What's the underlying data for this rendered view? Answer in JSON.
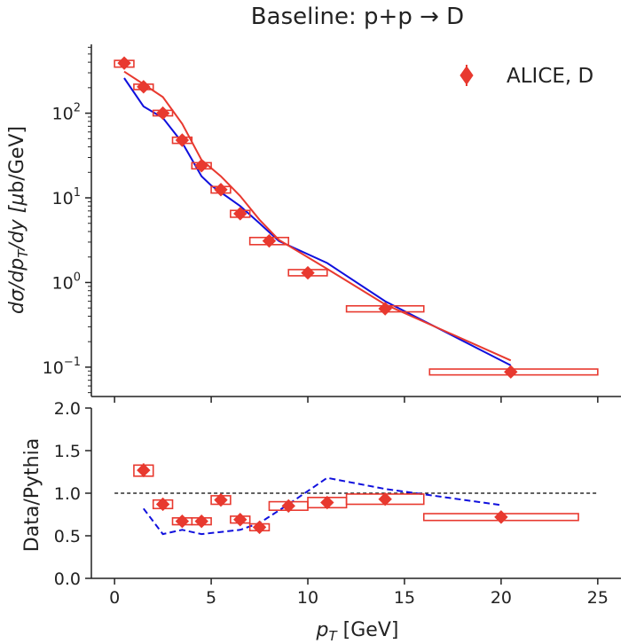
{
  "title": "Baseline: p+p → D",
  "colors": {
    "data": "#e8392f",
    "pythia_alt": "#1010dd",
    "axis": "#222222"
  },
  "top_panel": {
    "ylabel": "dσ/dp",
    "ylabel_sub": "T",
    "ylabel_mid": "/dy [",
    "ylabel_mu": "μ",
    "ylabel_end": "b/GeV]",
    "ytick_exps": [
      "2",
      "1",
      "0",
      "−1"
    ],
    "legend": "ALICE, D"
  },
  "bottom_panel": {
    "ylabel": "Data/Pythia",
    "yticks": [
      "0.0",
      "0.5",
      "1.0",
      "1.5",
      "2.0"
    ]
  },
  "xlabel_main": "p",
  "xlabel_sub": "T",
  "xlabel_unit": " [GeV]",
  "xticks": [
    "0",
    "5",
    "10",
    "15",
    "20",
    "25"
  ],
  "chart_data": [
    {
      "type": "scatter",
      "panel": "top",
      "y_scale": "log",
      "xlim": [
        -1.2,
        26.2
      ],
      "ylim": [
        0.045,
        650
      ],
      "series": [
        {
          "name": "ALICE, D",
          "marker": "diamond",
          "x": [
            0.5,
            1.5,
            2.5,
            3.5,
            4.5,
            5.5,
            6.5,
            8.0,
            10.0,
            14.0,
            20.5
          ],
          "y": [
            390,
            205,
            100,
            48,
            24,
            12.5,
            6.5,
            3.1,
            1.3,
            0.49,
            0.088
          ],
          "x_low": [
            0.0,
            1.0,
            2.0,
            3.0,
            4.0,
            5.0,
            6.0,
            7.0,
            9.0,
            12.0,
            16.3
          ],
          "x_high": [
            1.0,
            2.0,
            3.0,
            4.0,
            5.0,
            6.0,
            7.0,
            9.0,
            11.0,
            16.0,
            25.0
          ],
          "sys_low": [
            350,
            190,
            93,
            44,
            22,
            11.4,
            5.9,
            2.8,
            1.2,
            0.45,
            0.081
          ],
          "sys_high": [
            420,
            220,
            108,
            52,
            26,
            13.6,
            7.1,
            3.4,
            1.42,
            0.53,
            0.095
          ]
        },
        {
          "line": "red",
          "x": [
            0.5,
            1.5,
            2.5,
            3.5,
            4.5,
            5.5,
            6.5,
            7.5,
            8.5,
            11.0,
            14.0,
            20.5
          ],
          "y": [
            310,
            220,
            155,
            75,
            28,
            18,
            10.5,
            5.5,
            3.2,
            1.45,
            0.55,
            0.12
          ]
        },
        {
          "line": "blue",
          "x": [
            0.5,
            1.5,
            2.5,
            3.5,
            4.5,
            5.0,
            6.5,
            7.5,
            8.5,
            11.0,
            14.0,
            20.5
          ],
          "y": [
            260,
            120,
            88,
            45,
            18,
            14,
            8,
            5,
            3.1,
            1.7,
            0.6,
            0.105
          ]
        }
      ]
    },
    {
      "type": "scatter",
      "panel": "bottom",
      "xlim": [
        -1.2,
        26.2
      ],
      "ylim": [
        0.0,
        2.0
      ],
      "reference_line": 1.0,
      "series": [
        {
          "marker": "diamond",
          "x": [
            1.5,
            2.5,
            3.5,
            4.5,
            5.5,
            6.5,
            7.5,
            9.0,
            11.0,
            14.0,
            20.0
          ],
          "y": [
            1.27,
            0.87,
            0.67,
            0.67,
            0.92,
            0.69,
            0.6,
            0.85,
            0.89,
            0.93,
            0.72
          ],
          "x_low": [
            1.0,
            2.0,
            3.0,
            4.0,
            5.0,
            6.0,
            7.0,
            8.0,
            10.0,
            12.0,
            16.0
          ],
          "x_high": [
            2.0,
            3.0,
            4.0,
            5.0,
            6.0,
            7.0,
            8.0,
            10.0,
            12.0,
            16.0,
            24.0
          ],
          "sys_low": [
            1.2,
            0.82,
            0.63,
            0.63,
            0.87,
            0.65,
            0.56,
            0.8,
            0.83,
            0.87,
            0.68
          ],
          "sys_high": [
            1.33,
            0.92,
            0.71,
            0.71,
            0.97,
            0.73,
            0.64,
            0.9,
            0.95,
            0.99,
            0.76
          ],
          "err_low": [
            1.19,
            0.83,
            0.63,
            0.63,
            0.88,
            0.65,
            0.56,
            0.81,
            0.85,
            0.9,
            0.7
          ],
          "err_high": [
            1.35,
            0.91,
            0.71,
            0.71,
            0.96,
            0.73,
            0.64,
            0.89,
            0.93,
            0.96,
            0.74
          ]
        },
        {
          "line": "blue-dashed",
          "x": [
            1.5,
            2.5,
            3.5,
            4.5,
            6.5,
            7.5,
            9.0,
            11.0,
            14.0,
            20.0
          ],
          "y": [
            0.82,
            0.52,
            0.57,
            0.52,
            0.57,
            0.65,
            0.87,
            1.18,
            1.05,
            0.86
          ]
        }
      ]
    }
  ]
}
